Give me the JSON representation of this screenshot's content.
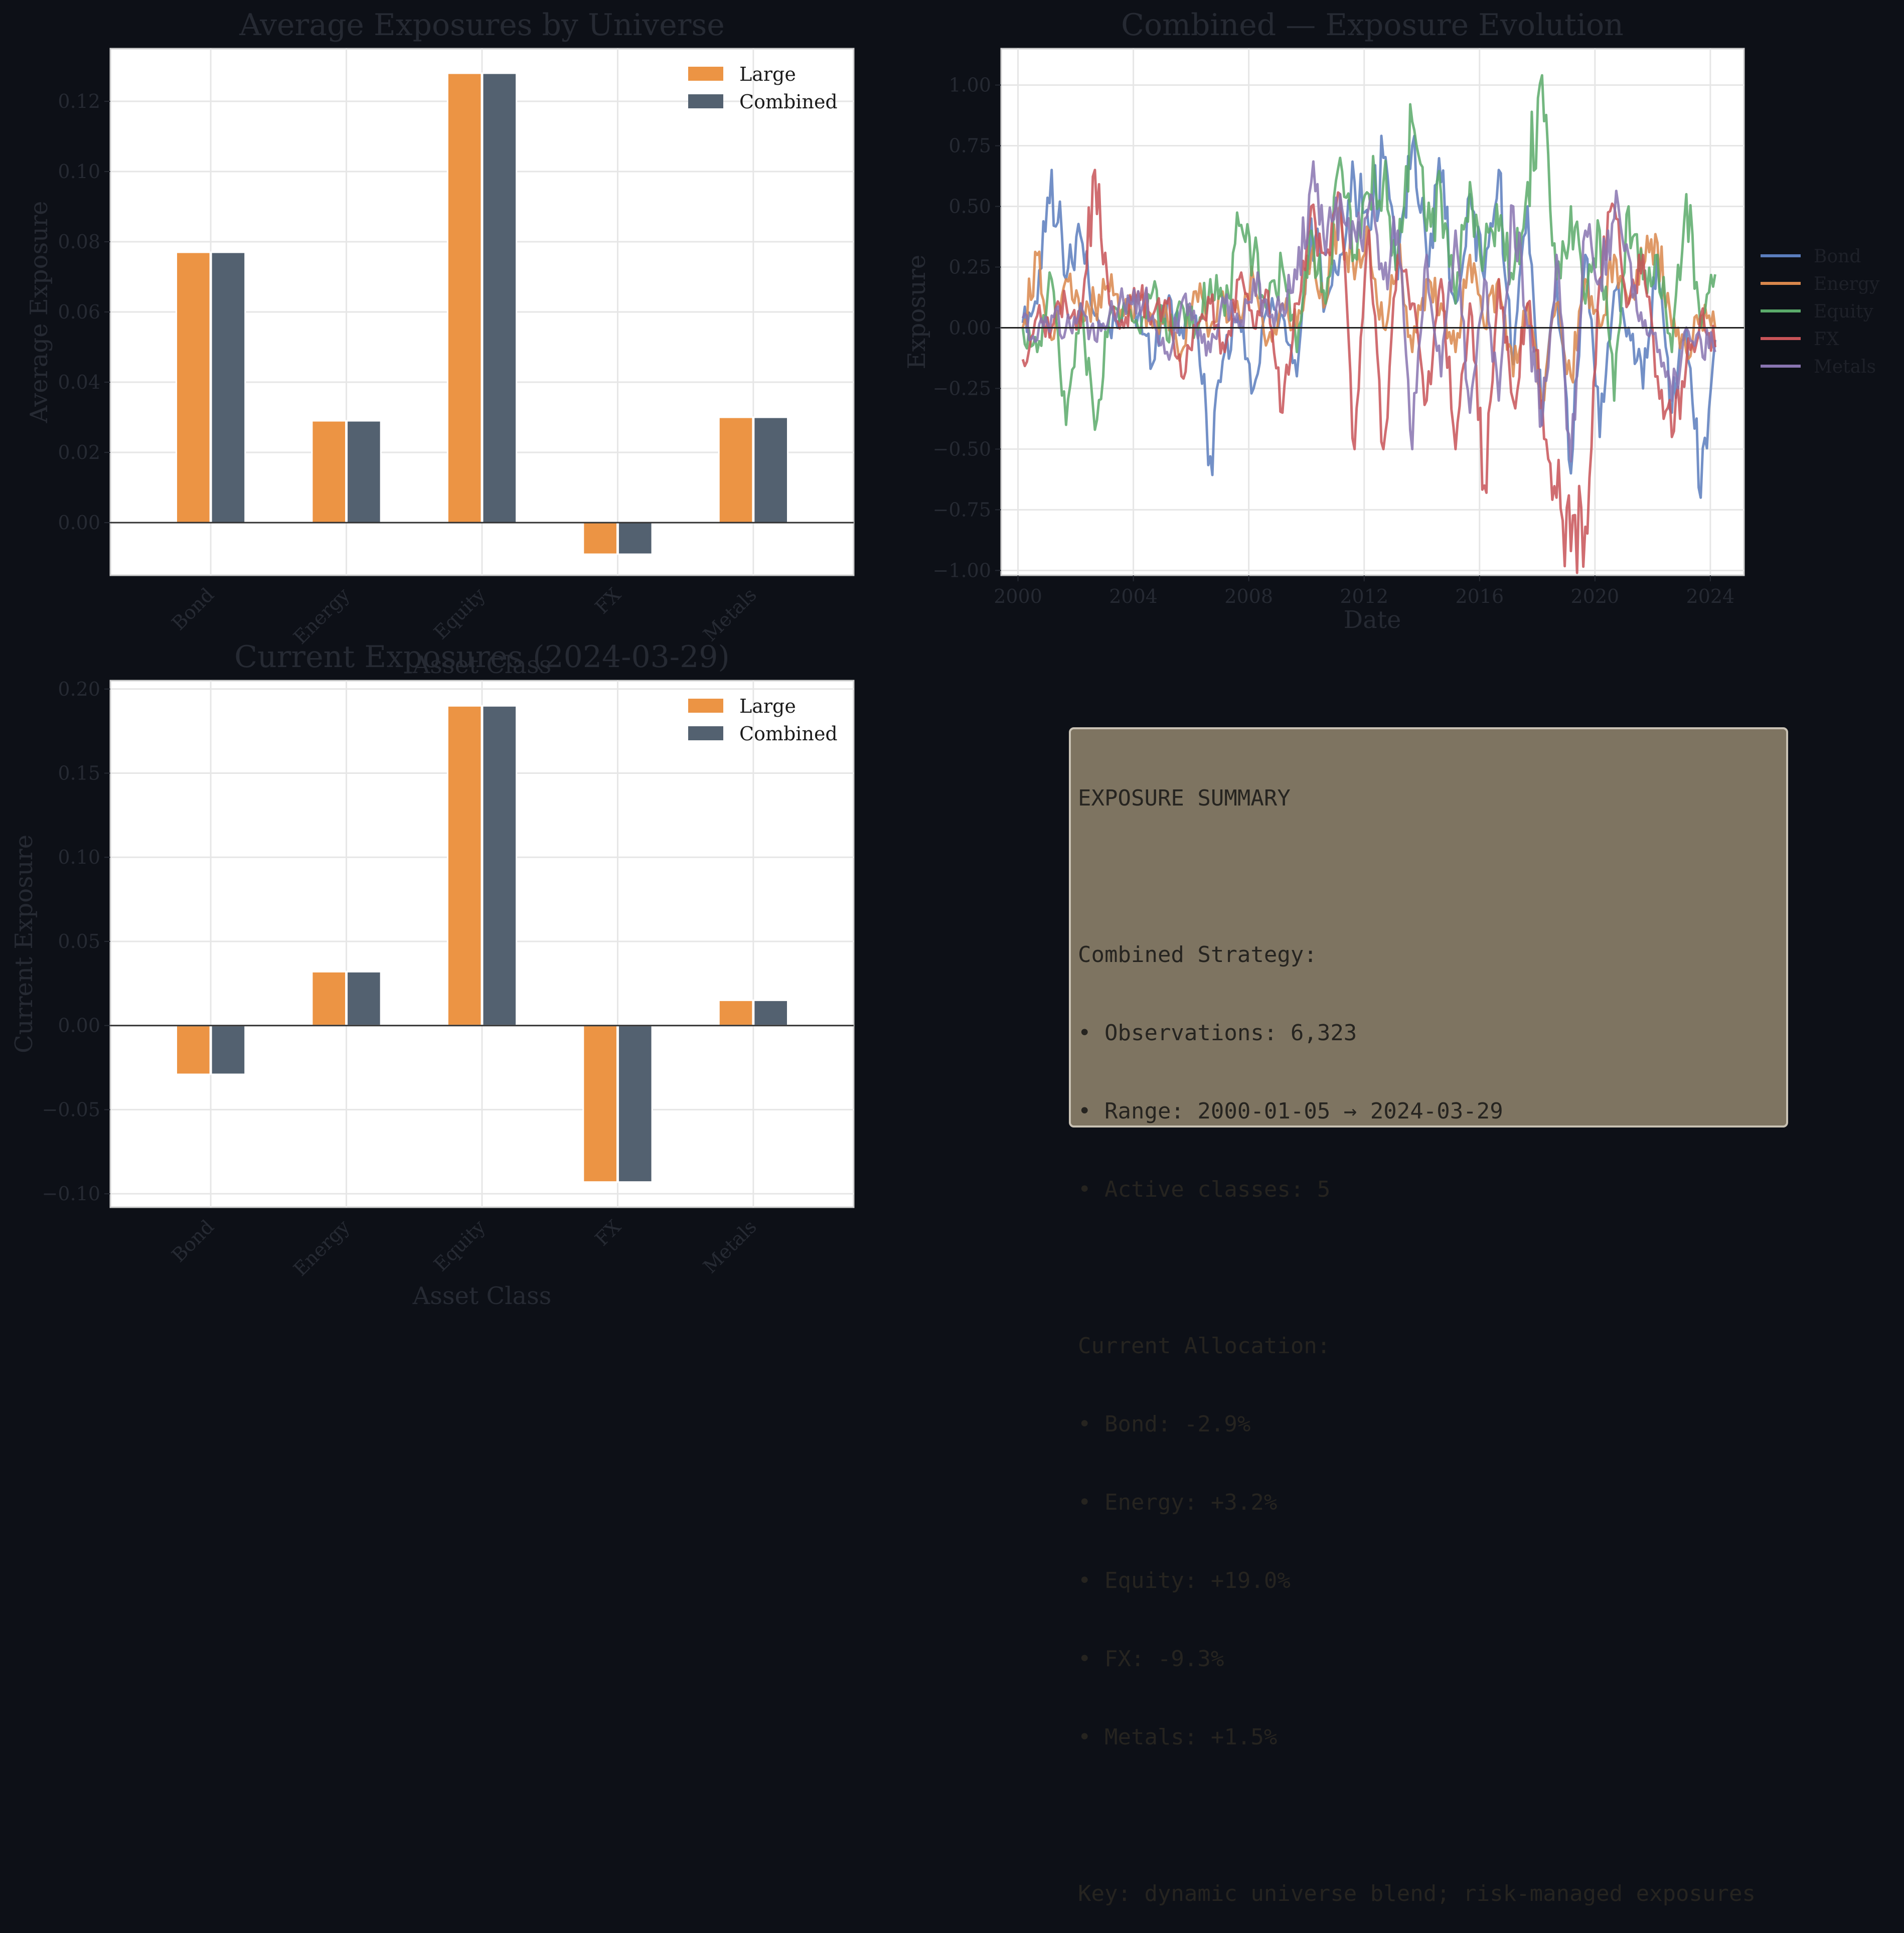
{
  "colors": {
    "figure_bg": "#0d1017",
    "axes_bg": "#ffffff",
    "text_dim": "#262a33",
    "grid": "#e6e6e6",
    "large": "#ec9444",
    "combined": "#536170",
    "summary_bg": "#7e7461",
    "series": {
      "Bond": "#5a7dbd",
      "Energy": "#d9874c",
      "Equity": "#5aaa6a",
      "FX": "#c85358",
      "Metals": "#8874b0"
    }
  },
  "chart_data": [
    {
      "id": "avg",
      "type": "bar",
      "title": "Average Exposures by Universe",
      "xlabel": "Asset Class",
      "ylabel": "Average Exposure",
      "categories": [
        "Bond",
        "Energy",
        "Equity",
        "FX",
        "Metals"
      ],
      "series": [
        {
          "name": "Large",
          "values": [
            0.077,
            0.029,
            0.128,
            -0.009,
            0.03
          ]
        },
        {
          "name": "Combined",
          "values": [
            0.077,
            0.029,
            0.128,
            -0.009,
            0.03
          ]
        }
      ],
      "ylim": [
        -0.015,
        0.135
      ],
      "yticks": [
        0.0,
        0.02,
        0.04,
        0.06,
        0.08,
        0.1,
        0.12
      ],
      "ytick_labels": [
        "0.00",
        "0.02",
        "0.04",
        "0.06",
        "0.08",
        "0.10",
        "0.12"
      ],
      "legend": "top-right",
      "grid": true
    },
    {
      "id": "evo",
      "type": "line",
      "title": "Combined — Exposure Evolution",
      "xlabel": "Date",
      "ylabel": "Exposure",
      "xlim": [
        "1999-06-01",
        "2025-03-01"
      ],
      "ylim": [
        -1.02,
        1.15
      ],
      "xticks": [
        "2000",
        "2004",
        "2008",
        "2012",
        "2016",
        "2020",
        "2024"
      ],
      "yticks": [
        -1.0,
        -0.75,
        -0.5,
        -0.25,
        0.0,
        0.25,
        0.5,
        0.75,
        1.0
      ],
      "ytick_labels": [
        "−1.00",
        "−0.75",
        "−0.50",
        "−0.25",
        "0.00",
        "0.25",
        "0.50",
        "0.75",
        "1.00"
      ],
      "legend": "outside-right",
      "grid": true,
      "series": [
        {
          "name": "Bond",
          "x": [
            "2000-03",
            "2000-09",
            "2001-03",
            "2001-09",
            "2002-03",
            "2002-09",
            "2003-03",
            "2003-09",
            "2004-03",
            "2004-09",
            "2005-03",
            "2005-09",
            "2006-03",
            "2006-09",
            "2007-03",
            "2007-09",
            "2008-03",
            "2008-09",
            "2009-03",
            "2009-09",
            "2010-03",
            "2010-09",
            "2011-03",
            "2011-09",
            "2012-03",
            "2012-09",
            "2013-03",
            "2013-09",
            "2014-03",
            "2014-09",
            "2015-03",
            "2015-09",
            "2016-03",
            "2016-09",
            "2017-03",
            "2017-09",
            "2018-03",
            "2018-09",
            "2019-03",
            "2019-09",
            "2020-03",
            "2020-09",
            "2021-03",
            "2021-09",
            "2022-03",
            "2022-09",
            "2023-03",
            "2023-09",
            "2024-03"
          ],
          "values": [
            0.02,
            0.1,
            0.65,
            0.2,
            0.38,
            0.05,
            0.0,
            0.1,
            0.05,
            -0.15,
            0.1,
            0.0,
            0.05,
            -0.53,
            -0.1,
            0.05,
            -0.25,
            0.1,
            0.05,
            -0.2,
            0.45,
            0.1,
            0.3,
            0.6,
            0.4,
            0.7,
            0.2,
            0.75,
            0.3,
            0.6,
            0.1,
            0.55,
            0.2,
            0.65,
            -0.15,
            0.5,
            -0.4,
            0.2,
            -0.6,
            0.3,
            -0.45,
            0.15,
            0.0,
            -0.25,
            0.3,
            -0.35,
            0.0,
            -0.7,
            -0.05
          ]
        },
        {
          "name": "Energy",
          "x": [
            "2000-03",
            "2000-09",
            "2001-03",
            "2001-09",
            "2002-03",
            "2002-09",
            "2003-03",
            "2003-09",
            "2004-03",
            "2004-09",
            "2005-03",
            "2005-09",
            "2006-03",
            "2006-09",
            "2007-03",
            "2007-09",
            "2008-03",
            "2008-09",
            "2009-03",
            "2009-09",
            "2010-03",
            "2010-09",
            "2011-03",
            "2011-09",
            "2012-03",
            "2012-09",
            "2013-03",
            "2013-09",
            "2014-03",
            "2014-09",
            "2015-03",
            "2015-09",
            "2016-03",
            "2016-09",
            "2017-03",
            "2017-09",
            "2018-03",
            "2018-09",
            "2019-03",
            "2019-09",
            "2020-03",
            "2020-09",
            "2021-03",
            "2021-09",
            "2022-03",
            "2022-09",
            "2023-03",
            "2023-09",
            "2024-03"
          ],
          "values": [
            0.0,
            0.3,
            -0.05,
            0.2,
            0.05,
            0.1,
            0.15,
            0.05,
            0.1,
            0.0,
            0.05,
            -0.1,
            0.15,
            0.0,
            0.1,
            0.05,
            0.2,
            -0.05,
            0.1,
            0.0,
            0.3,
            0.1,
            0.5,
            0.2,
            0.4,
            0.0,
            0.3,
            -0.1,
            0.2,
            0.1,
            -0.1,
            0.3,
            0.0,
            0.2,
            -0.2,
            0.1,
            -0.3,
            0.1,
            -0.2,
            0.2,
            0.0,
            0.3,
            0.1,
            0.25,
            0.35,
            0.0,
            -0.1,
            0.05,
            0.0
          ]
        },
        {
          "name": "Equity",
          "x": [
            "2000-03",
            "2000-09",
            "2001-03",
            "2001-09",
            "2002-03",
            "2002-09",
            "2003-03",
            "2003-09",
            "2004-03",
            "2004-09",
            "2005-03",
            "2005-09",
            "2006-03",
            "2006-09",
            "2007-03",
            "2007-09",
            "2008-03",
            "2008-09",
            "2009-03",
            "2009-09",
            "2010-03",
            "2010-09",
            "2011-03",
            "2011-09",
            "2012-03",
            "2012-09",
            "2013-03",
            "2013-09",
            "2014-03",
            "2014-09",
            "2015-03",
            "2015-09",
            "2016-03",
            "2016-09",
            "2017-03",
            "2017-09",
            "2018-03",
            "2018-09",
            "2019-03",
            "2019-09",
            "2020-03",
            "2020-09",
            "2021-03",
            "2021-09",
            "2022-03",
            "2022-09",
            "2023-03",
            "2023-09",
            "2024-03"
          ],
          "values": [
            0.0,
            -0.1,
            0.2,
            -0.4,
            0.1,
            -0.42,
            0.05,
            0.1,
            0.0,
            0.15,
            -0.05,
            0.1,
            0.0,
            0.2,
            0.05,
            0.42,
            0.3,
            0.1,
            0.25,
            -0.1,
            0.4,
            0.1,
            0.7,
            0.3,
            0.55,
            0.6,
            0.3,
            0.85,
            0.4,
            0.55,
            0.1,
            0.6,
            0.3,
            0.4,
            0.2,
            0.6,
            1.04,
            0.2,
            0.5,
            0.1,
            0.4,
            -0.3,
            0.5,
            0.2,
            0.3,
            -0.1,
            0.55,
            0.0,
            0.22
          ]
        },
        {
          "name": "FX",
          "x": [
            "2000-03",
            "2000-09",
            "2001-03",
            "2001-09",
            "2002-03",
            "2002-09",
            "2003-03",
            "2003-09",
            "2004-03",
            "2004-09",
            "2005-03",
            "2005-09",
            "2006-03",
            "2006-09",
            "2007-03",
            "2007-09",
            "2008-03",
            "2008-09",
            "2009-03",
            "2009-09",
            "2010-03",
            "2010-09",
            "2011-03",
            "2011-09",
            "2012-03",
            "2012-09",
            "2013-03",
            "2013-09",
            "2014-03",
            "2014-09",
            "2015-03",
            "2015-09",
            "2016-03",
            "2016-09",
            "2017-03",
            "2017-09",
            "2018-03",
            "2018-09",
            "2019-03",
            "2019-09",
            "2020-03",
            "2020-09",
            "2021-03",
            "2021-09",
            "2022-03",
            "2022-09",
            "2023-03",
            "2023-09",
            "2024-03"
          ],
          "values": [
            -0.13,
            0.05,
            0.0,
            0.1,
            0.0,
            0.65,
            0.1,
            0.0,
            0.15,
            0.05,
            0.1,
            -0.2,
            0.0,
            0.1,
            -0.1,
            0.2,
            0.0,
            0.15,
            -0.35,
            0.1,
            0.5,
            0.3,
            0.55,
            -0.5,
            0.4,
            -0.5,
            0.3,
            0.1,
            -0.3,
            0.2,
            -0.5,
            0.1,
            -0.65,
            0.2,
            -0.3,
            0.1,
            -0.3,
            -0.7,
            -0.92,
            -0.82,
            0.2,
            0.5,
            0.1,
            0.3,
            -0.2,
            -0.45,
            -0.15,
            0.05,
            -0.08
          ]
        },
        {
          "name": "Metals",
          "x": [
            "2000-03",
            "2000-09",
            "2001-03",
            "2001-09",
            "2002-03",
            "2002-09",
            "2003-03",
            "2003-09",
            "2004-03",
            "2004-09",
            "2005-03",
            "2005-09",
            "2006-03",
            "2006-09",
            "2007-03",
            "2007-09",
            "2008-03",
            "2008-09",
            "2009-03",
            "2009-09",
            "2010-03",
            "2010-09",
            "2011-03",
            "2011-09",
            "2012-03",
            "2012-09",
            "2013-03",
            "2013-09",
            "2014-03",
            "2014-09",
            "2015-03",
            "2015-09",
            "2016-03",
            "2016-09",
            "2017-03",
            "2017-09",
            "2018-03",
            "2018-09",
            "2019-03",
            "2019-09",
            "2020-03",
            "2020-09",
            "2021-03",
            "2021-09",
            "2022-03",
            "2022-09",
            "2023-03",
            "2023-09",
            "2024-03"
          ],
          "values": [
            0.04,
            -0.05,
            0.05,
            0.0,
            0.1,
            -0.05,
            0.05,
            0.1,
            0.15,
            0.05,
            -0.1,
            0.1,
            0.0,
            -0.1,
            0.1,
            0.0,
            0.2,
            0.05,
            0.1,
            0.2,
            0.6,
            0.3,
            0.55,
            0.4,
            0.5,
            0.2,
            0.4,
            -0.5,
            0.3,
            -0.2,
            0.4,
            -0.35,
            0.2,
            -0.3,
            0.5,
            0.0,
            -0.4,
            0.3,
            -0.55,
            0.4,
            0.2,
            0.45,
            0.3,
            0.0,
            -0.1,
            -0.3,
            0.0,
            -0.05,
            -0.1
          ]
        }
      ]
    },
    {
      "id": "cur",
      "type": "bar",
      "title": "Current Exposures (2024-03-29)",
      "xlabel": "Asset Class",
      "ylabel": "Current Exposure",
      "categories": [
        "Bond",
        "Energy",
        "Equity",
        "FX",
        "Metals"
      ],
      "series": [
        {
          "name": "Large",
          "values": [
            -0.029,
            0.032,
            0.19,
            -0.093,
            0.015
          ]
        },
        {
          "name": "Combined",
          "values": [
            -0.029,
            0.032,
            0.19,
            -0.093,
            0.015
          ]
        }
      ],
      "ylim": [
        -0.108,
        0.205
      ],
      "yticks": [
        -0.1,
        -0.05,
        0.0,
        0.05,
        0.1,
        0.15,
        0.2
      ],
      "ytick_labels": [
        "−0.10",
        "−0.05",
        "0.00",
        "0.05",
        "0.10",
        "0.15",
        "0.20"
      ],
      "legend": "top-right",
      "grid": true
    }
  ],
  "summary": {
    "lines": [
      "EXPOSURE SUMMARY",
      "",
      "Combined Strategy:",
      "• Observations: 6,323",
      "• Range: 2000-01-05 → 2024-03-29",
      "• Active classes: 5",
      "",
      "Current Allocation:",
      "• Bond: -2.9%",
      "• Energy: +3.2%",
      "• Equity: +19.0%",
      "• FX: -9.3%",
      "• Metals: +1.5%",
      "",
      "Key: dynamic universe blend; risk-managed exposures"
    ]
  }
}
